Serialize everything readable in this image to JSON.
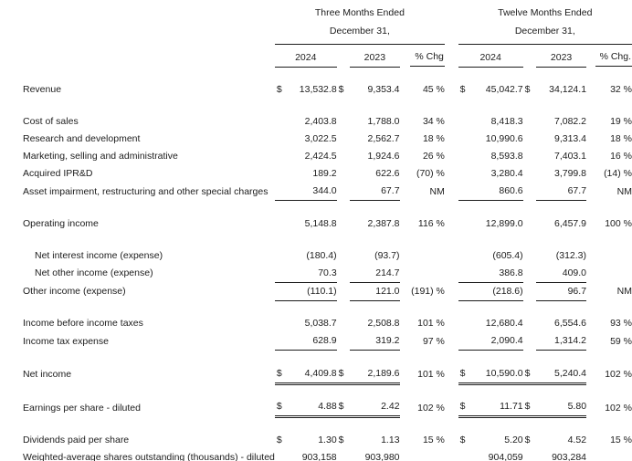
{
  "table": {
    "currency_symbol": "$",
    "header": {
      "three_months_title": "Three Months Ended",
      "twelve_months_title": "Twelve Months Ended",
      "date_label": "December 31,",
      "date_label_2": "December 31,",
      "columns": [
        "2024",
        "2023",
        "% Chg",
        "2024",
        "2023",
        "% Chg."
      ]
    },
    "rows": [
      {
        "label": "Revenue",
        "dollar": true,
        "gap_before": true,
        "values": [
          "13,532.8",
          "9,353.4",
          "45 %",
          "45,042.7",
          "34,124.1",
          "32 %"
        ]
      },
      {
        "label": "Cost of sales",
        "gap_before": true,
        "values": [
          "2,403.8",
          "1,788.0",
          "34 %",
          "8,418.3",
          "7,082.2",
          "19 %"
        ]
      },
      {
        "label": "Research and development",
        "values": [
          "3,022.5",
          "2,562.7",
          "18 %",
          "10,990.6",
          "9,313.4",
          "18 %"
        ]
      },
      {
        "label": "Marketing, selling and administrative",
        "values": [
          "2,424.5",
          "1,924.6",
          "26 %",
          "8,593.8",
          "7,403.1",
          "16 %"
        ]
      },
      {
        "label": "Acquired IPR&D",
        "values": [
          "189.2",
          "622.6",
          "(70) %",
          "3,280.4",
          "3,799.8",
          "(14) %"
        ]
      },
      {
        "label": "Asset impairment, restructuring and other special charges",
        "underline": "single",
        "values": [
          "344.0",
          "67.7",
          "NM",
          "860.6",
          "67.7",
          "NM"
        ]
      },
      {
        "label": "Operating income",
        "gap_before": true,
        "values": [
          "5,148.8",
          "2,387.8",
          "116 %",
          "12,899.0",
          "6,457.9",
          "100 %"
        ]
      },
      {
        "label": "Net interest income (expense)",
        "indent": true,
        "gap_before": true,
        "values": [
          "(180.4)",
          "(93.7)",
          "",
          "(605.4)",
          "(312.3)",
          ""
        ]
      },
      {
        "label": "Net other income (expense)",
        "indent": true,
        "underline": "single",
        "values": [
          "70.3",
          "214.7",
          "",
          "386.8",
          "409.0",
          ""
        ]
      },
      {
        "label": "Other income (expense)",
        "underline": "single",
        "values": [
          "(110.1)",
          "121.0",
          "(191) %",
          "(218.6)",
          "96.7",
          "NM"
        ]
      },
      {
        "label": "Income before income taxes",
        "gap_before": true,
        "values": [
          "5,038.7",
          "2,508.8",
          "101 %",
          "12,680.4",
          "6,554.6",
          "93 %"
        ]
      },
      {
        "label": "Income tax expense",
        "underline": "single",
        "values": [
          "628.9",
          "319.2",
          "97 %",
          "2,090.4",
          "1,314.2",
          "59 %"
        ]
      },
      {
        "label": "Net income",
        "dollar": true,
        "underline": "double",
        "gap_before": true,
        "values": [
          "4,409.8",
          "2,189.6",
          "101 %",
          "10,590.0",
          "5,240.4",
          "102 %"
        ]
      },
      {
        "label": "Earnings per share - diluted",
        "dollar": true,
        "underline": "double",
        "gap_before": true,
        "values": [
          "4.88",
          "2.42",
          "102 %",
          "11.71",
          "5.80",
          "102 %"
        ]
      },
      {
        "label": "Dividends paid per share",
        "dollar": true,
        "gap_before": true,
        "values": [
          "1.30",
          "1.13",
          "15 %",
          "5.20",
          "4.52",
          "15 %"
        ]
      },
      {
        "label": "Weighted-average shares outstanding (thousands) - diluted",
        "values": [
          "903,158",
          "903,980",
          "",
          "904,059",
          "903,284",
          ""
        ]
      }
    ]
  }
}
